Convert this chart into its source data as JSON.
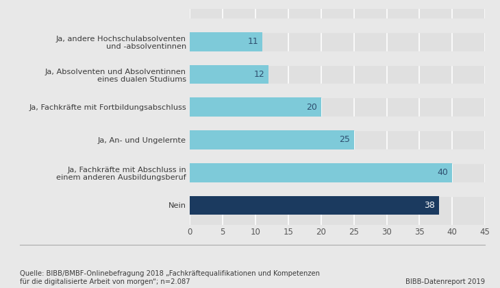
{
  "categories": [
    "Nein",
    "Ja, Fachkräfte mit Abschluss in\neinem anderen Ausbildungsberuf",
    "Ja, An- und Ungelernte",
    "Ja, Fachkräfte mit Fortbildungsabschluss",
    "Ja, Absolventen und Absolventinnen\neines dualen Studiums",
    "Ja, andere Hochschulabsolventen\nund -absolventinnen"
  ],
  "values": [
    38,
    40,
    25,
    20,
    12,
    11
  ],
  "bar_colors": [
    "#1b3a5f",
    "#7ecad9",
    "#7ecad9",
    "#7ecad9",
    "#7ecad9",
    "#7ecad9"
  ],
  "value_label_colors": [
    "#ffffff",
    "#2e4e6e",
    "#2e4e6e",
    "#2e4e6e",
    "#2e4e6e",
    "#2e4e6e"
  ],
  "xlim": [
    0,
    45
  ],
  "xticks": [
    0,
    5,
    10,
    15,
    20,
    25,
    30,
    35,
    40,
    45
  ],
  "background_color": "#e8e8e8",
  "plot_bg_color": "#e0e0e0",
  "bar_height": 0.58,
  "source_text": "Quelle: BIBB/BMBF-Onlinebefragung 2018 „Fachkräftequalifikationen und Kompetenzen\nfür die digitalisierte Arbeit von morgen“; n=2.087",
  "right_note": "BIBB-Datenreport 2019",
  "label_fontsize": 8.2,
  "value_fontsize": 9,
  "source_fontsize": 7.2,
  "tick_fontsize": 8.5
}
